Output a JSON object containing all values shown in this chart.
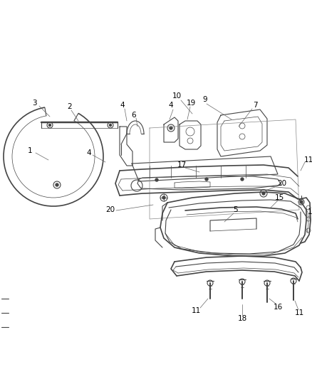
{
  "background_color": "#ffffff",
  "fig_width": 4.38,
  "fig_height": 5.33,
  "dpi": 100,
  "line_color": "#444444",
  "label_color": "#000000",
  "label_fontsize": 7.5,
  "lw_main": 1.2,
  "lw_med": 0.8,
  "lw_thin": 0.5
}
